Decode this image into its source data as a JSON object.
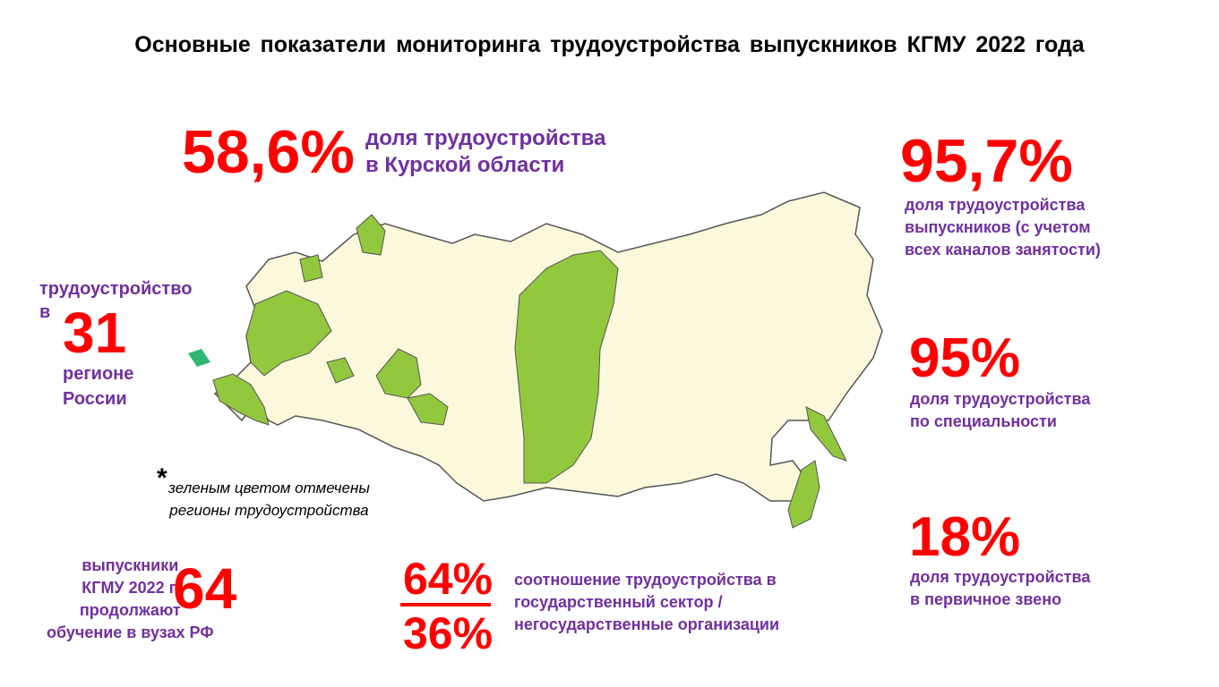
{
  "title": "Основные показатели мониторинга трудоустройства выпускников КГМУ 2022 года",
  "kursk_share": {
    "value": "58,6%",
    "caption": [
      "доля трудоустройства",
      "в Курской области"
    ]
  },
  "total_share": {
    "value": "95,7%",
    "caption": [
      "доля трудоустройства",
      "выпускников (с учетом",
      "всех каналов занятости)"
    ]
  },
  "specialty_share": {
    "value": "95%",
    "caption": [
      "доля трудоустройства",
      "по специальности"
    ]
  },
  "primary_share": {
    "value": "18%",
    "caption": [
      "доля трудоустройства",
      "в первичное звено"
    ]
  },
  "regions": {
    "before": [
      "трудоустройство",
      "в"
    ],
    "value": "31",
    "after": [
      "регионе",
      "России"
    ]
  },
  "map_note": {
    "asterisk": "*",
    "lines": [
      "зеленым цветом отмечены",
      "регионы трудоустройства"
    ]
  },
  "further_study": {
    "lines": [
      "выпускники",
      "КГМУ 2022 г.",
      "продолжают",
      "обучение в  вузах РФ"
    ],
    "value": "64"
  },
  "sector_ratio": {
    "public": "64%",
    "private": "36%",
    "caption": [
      "соотношение трудоустройства  в",
      "государственный сектор /",
      "негосударственные организации"
    ]
  }
}
